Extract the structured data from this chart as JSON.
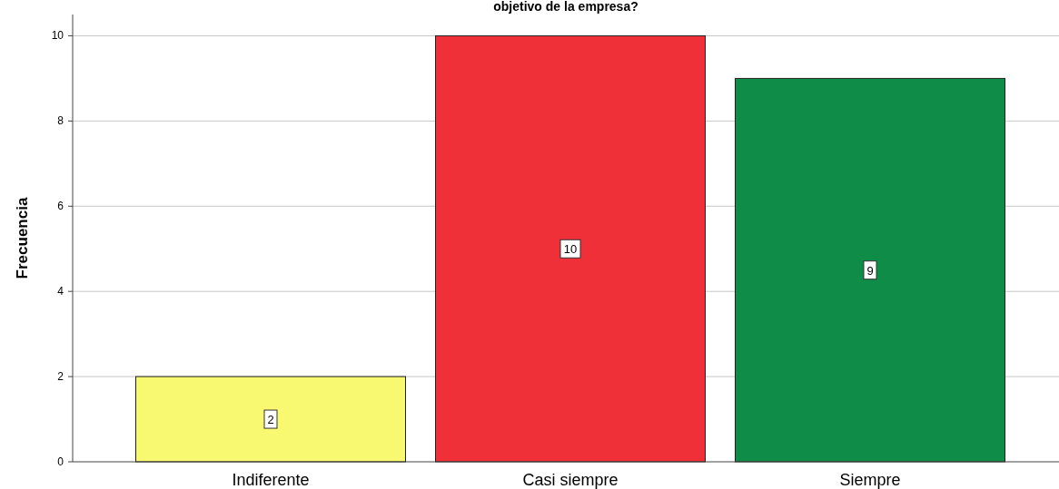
{
  "chart_data": {
    "type": "bar",
    "title": "objetivo de la empresa?",
    "ylabel": "Frecuencia",
    "categories": [
      "Indiferente",
      "Casi siempre",
      "Siempre"
    ],
    "values": [
      2,
      10,
      9
    ],
    "colors": [
      "#f9f871",
      "#ef3038",
      "#0f8c47"
    ],
    "ylim": [
      0,
      10.5
    ],
    "yticks": [
      0,
      2,
      4,
      6,
      8,
      10
    ],
    "grid": "y",
    "data_labels": true
  }
}
